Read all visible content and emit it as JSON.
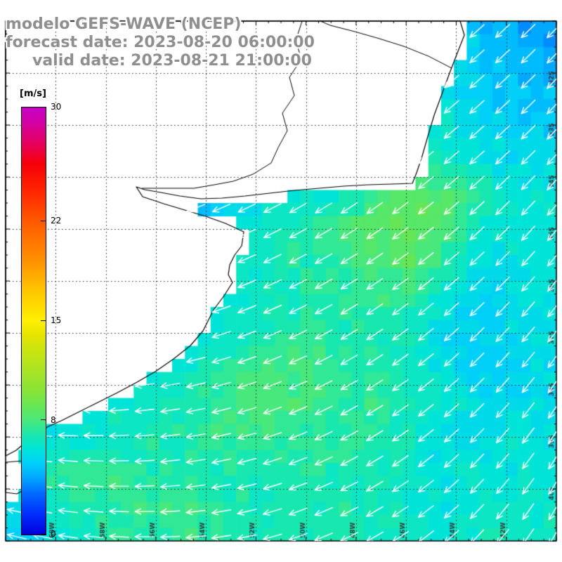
{
  "header": {
    "title": "modelo GEFS-WAVE (NCEP)",
    "forecast_line": "forecast date: 2023-08-20 06:00:00",
    "valid_line": "valid date: 2023-08-21 21:00:00",
    "text_color": "#8f8f8f"
  },
  "colorbar": {
    "unit_label": "[m/s]",
    "min": 0,
    "max": 30,
    "ticks": [
      30,
      22,
      15,
      8,
      0
    ]
  },
  "chart_data": {
    "type": "heatmap",
    "title": "modelo GEFS-WAVE (NCEP)",
    "units": "m/s",
    "value_range": [
      0,
      30
    ],
    "legend_position": "left",
    "grid": "dotted",
    "x_tick_labels": [
      "60W",
      "58W",
      "56W",
      "54W",
      "52W",
      "50W",
      "48W",
      "46W",
      "44W",
      "42W"
    ],
    "y_tick_labels": [
      "32S",
      "33S",
      "34S",
      "35S",
      "36S",
      "37S",
      "38S",
      "39S",
      "40S"
    ],
    "colormap": [
      [
        0,
        "#0000dc"
      ],
      [
        1.5,
        "#0030ff"
      ],
      [
        3,
        "#0070ff"
      ],
      [
        4,
        "#00a8ff"
      ],
      [
        5,
        "#00d0f8"
      ],
      [
        6,
        "#00e4d8"
      ],
      [
        7,
        "#18e8b0"
      ],
      [
        8,
        "#48e87c"
      ],
      [
        9,
        "#66e656"
      ],
      [
        10,
        "#84e438"
      ],
      [
        12,
        "#b4e41e"
      ],
      [
        14,
        "#e6e400"
      ],
      [
        15,
        "#fff000"
      ],
      [
        17,
        "#ffc800"
      ],
      [
        19,
        "#ff9600"
      ],
      [
        22,
        "#ff5a00"
      ],
      [
        24,
        "#ff2800"
      ],
      [
        26,
        "#f60008"
      ],
      [
        27.5,
        "#e60060"
      ],
      [
        29,
        "#d200a8"
      ],
      [
        30,
        "#c800c8"
      ]
    ],
    "speed_grid": [
      [
        6,
        6,
        6,
        6,
        6,
        6,
        6,
        6,
        6,
        6,
        6,
        6,
        6,
        4.5,
        4,
        3.5
      ],
      [
        6,
        6,
        6,
        6,
        6,
        6,
        6,
        6,
        6,
        6,
        6,
        6,
        6,
        5,
        4.5,
        4
      ],
      [
        6,
        6,
        6,
        6,
        6,
        6,
        6,
        6,
        6,
        6,
        6,
        6,
        5.5,
        5,
        4.5,
        4.5
      ],
      [
        6,
        6,
        6,
        6,
        6,
        6,
        6,
        6,
        6,
        6,
        6,
        6.5,
        6,
        5.5,
        5,
        5
      ],
      [
        6,
        6,
        6,
        6,
        6,
        6,
        6,
        6,
        6,
        6,
        6.5,
        7,
        6.5,
        6,
        5.5,
        5.5
      ],
      [
        6,
        6,
        6,
        6,
        3.5,
        4,
        4.5,
        5.5,
        6,
        6.5,
        7.5,
        8.5,
        8.5,
        7,
        6,
        6
      ],
      [
        6,
        6,
        6,
        6,
        6,
        5.5,
        6,
        6.5,
        7,
        7.5,
        8.5,
        9,
        8,
        6.5,
        6,
        6
      ],
      [
        6,
        6,
        6,
        6,
        6,
        5.5,
        6,
        6.5,
        7,
        7.5,
        8,
        8.5,
        7,
        5.5,
        6,
        6
      ],
      [
        6,
        6,
        6,
        6,
        6,
        5,
        6,
        6.5,
        7,
        7,
        7.5,
        7.5,
        6,
        5,
        6,
        5.5
      ],
      [
        6,
        6,
        6,
        6,
        6,
        5.5,
        6.5,
        7,
        7,
        7,
        7,
        6.5,
        5.5,
        5,
        5.5,
        5.5
      ],
      [
        6,
        6,
        6,
        6,
        5.5,
        6.5,
        7.5,
        8,
        8,
        7.5,
        7,
        6.5,
        5.5,
        5,
        5.5,
        5.5
      ],
      [
        6,
        6,
        6,
        6.5,
        6.5,
        7,
        8,
        8.5,
        8,
        7.5,
        7.5,
        7,
        6.5,
        5.5,
        5.5,
        5.5
      ],
      [
        5,
        5.5,
        6,
        6.5,
        7,
        7,
        7.5,
        7.5,
        7.5,
        7,
        7,
        6.5,
        5.5,
        5.5,
        6,
        6
      ],
      [
        6,
        7.5,
        8,
        7.5,
        7,
        7,
        7,
        7,
        7,
        7,
        7,
        6.5,
        6,
        6,
        6,
        6
      ],
      [
        5,
        6,
        7,
        7.5,
        7.5,
        7.5,
        7,
        7,
        7,
        7,
        7,
        6.5,
        6,
        6.5,
        6.5,
        6.5
      ],
      [
        4.5,
        5.5,
        6.5,
        7,
        7,
        7.5,
        7,
        7,
        7,
        7,
        6.5,
        6.5,
        6,
        6.5,
        6.5,
        6.5
      ]
    ],
    "direction_grid_deg": [
      [
        165,
        160,
        155,
        150,
        145,
        140,
        138,
        135
      ],
      [
        168,
        163,
        158,
        152,
        147,
        142,
        138,
        134
      ],
      [
        172,
        166,
        160,
        154,
        148,
        143,
        138,
        133
      ],
      [
        176,
        170,
        163,
        156,
        150,
        144,
        137,
        130
      ],
      [
        180,
        174,
        167,
        159,
        152,
        144,
        136,
        128
      ],
      [
        185,
        178,
        171,
        163,
        154,
        145,
        135,
        125
      ],
      [
        190,
        183,
        175,
        166,
        156,
        146,
        134,
        122
      ],
      [
        195,
        187,
        179,
        169,
        158,
        147,
        133,
        120
      ]
    ],
    "land_polygon": [
      [
        8,
        30
      ],
      [
        655,
        30
      ],
      [
        661,
        50
      ],
      [
        650,
        78
      ],
      [
        640,
        104
      ],
      [
        629,
        134
      ],
      [
        618,
        164
      ],
      [
        609,
        194
      ],
      [
        601,
        222
      ],
      [
        593,
        246
      ],
      [
        587,
        261
      ],
      [
        558,
        262
      ],
      [
        524,
        263
      ],
      [
        489,
        265
      ],
      [
        454,
        268
      ],
      [
        419,
        271
      ],
      [
        384,
        275
      ],
      [
        349,
        279
      ],
      [
        316,
        282
      ],
      [
        286,
        283
      ],
      [
        256,
        279
      ],
      [
        229,
        274
      ],
      [
        206,
        270
      ],
      [
        194,
        266
      ],
      [
        203,
        280
      ],
      [
        233,
        290
      ],
      [
        263,
        299
      ],
      [
        293,
        308
      ],
      [
        321,
        318
      ],
      [
        347,
        330
      ],
      [
        344,
        350
      ],
      [
        334,
        363
      ],
      [
        327,
        377
      ],
      [
        325,
        391
      ],
      [
        331,
        402
      ],
      [
        319,
        421
      ],
      [
        304,
        441
      ],
      [
        295,
        459
      ],
      [
        289,
        471
      ],
      [
        271,
        492
      ],
      [
        247,
        511
      ],
      [
        221,
        529
      ],
      [
        195,
        544
      ],
      [
        167,
        559
      ],
      [
        137,
        574
      ],
      [
        107,
        589
      ],
      [
        87,
        599
      ],
      [
        69,
        607
      ],
      [
        51,
        617
      ],
      [
        37,
        629
      ],
      [
        23,
        641
      ],
      [
        8,
        649
      ]
    ],
    "islet_polygon": [
      [
        8,
        658
      ],
      [
        32,
        656
      ],
      [
        50,
        669
      ],
      [
        46,
        691
      ],
      [
        24,
        703
      ],
      [
        8,
        701
      ]
    ],
    "river_line": [
      [
        430,
        30
      ],
      [
        421,
        58
      ],
      [
        429,
        84
      ],
      [
        412,
        110
      ],
      [
        419,
        136
      ],
      [
        402,
        161
      ],
      [
        409,
        186
      ],
      [
        396,
        210
      ],
      [
        386,
        232
      ],
      [
        360,
        248
      ],
      [
        332,
        258
      ],
      [
        305,
        263
      ],
      [
        276,
        268
      ],
      [
        248,
        268
      ],
      [
        222,
        268
      ],
      [
        202,
        268
      ]
    ],
    "border_line": [
      [
        643,
        97
      ],
      [
        610,
        80
      ],
      [
        575,
        66
      ],
      [
        540,
        55
      ],
      [
        505,
        45
      ],
      [
        470,
        36
      ],
      [
        456,
        30
      ]
    ]
  }
}
